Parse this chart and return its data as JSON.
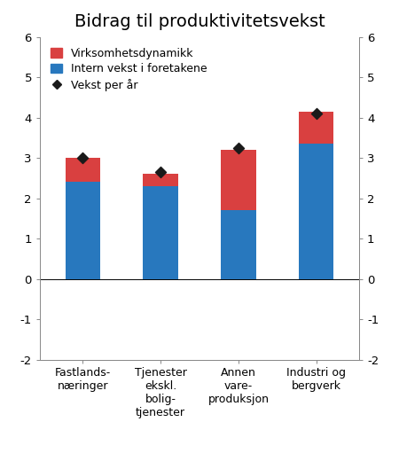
{
  "title": "Bidrag til produktivitetsvekst",
  "categories": [
    "Fastlands-\nnæringer",
    "Tjenester\nekskl.\nbolig-\ntjenester",
    "Annen\nvare-\nproduksjon",
    "Industri og\nbergverk"
  ],
  "blue_values": [
    2.4,
    2.3,
    1.7,
    3.35
  ],
  "red_values": [
    0.6,
    0.3,
    1.5,
    0.8
  ],
  "diamond_values": [
    3.0,
    2.65,
    3.25,
    4.1
  ],
  "bar_color_blue": "#2878BE",
  "bar_color_red": "#D94040",
  "diamond_color": "#1a1a1a",
  "ylim": [
    -2,
    6
  ],
  "yticks": [
    -2,
    -1,
    0,
    1,
    2,
    3,
    4,
    5,
    6
  ],
  "legend_labels": [
    "Virksomhetsdynamikk",
    "Intern vekst i foretakene",
    "Vekst per år"
  ],
  "background_color": "#ffffff",
  "bar_width": 0.45
}
